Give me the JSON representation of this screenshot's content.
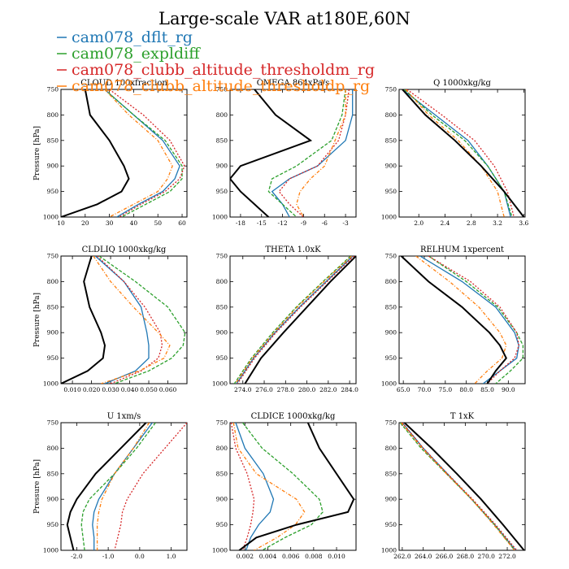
{
  "figure": {
    "title": "Large-scale VAR at180E,60N"
  },
  "legend": [
    {
      "label": "cam078_dflt_rg",
      "color": "#1f77b4"
    },
    {
      "label": "cam078_expldiff",
      "color": "#2ca02c"
    },
    {
      "label": "cam078_clubb_altitude_thresholdm_rg",
      "color": "#d62728"
    },
    {
      "label": "cam078_clubb_altitude_thresholdp_rg",
      "color": "#ff7f0e"
    }
  ],
  "styles": {
    "ref_color": "#000000",
    "ref_label": ""
  },
  "chart_data": [
    {
      "type": "line",
      "title": "CLOUD  100xfraction",
      "ylabel": "Pressure [hPa]",
      "y": [
        750,
        800,
        850,
        900,
        925,
        950,
        975,
        1000
      ],
      "ylim": [
        1000,
        750
      ],
      "xlim": [
        10,
        62
      ],
      "xticks": [
        10,
        20,
        30,
        40,
        50,
        60
      ],
      "xtick_labels": [
        "10",
        "20",
        "30",
        "40",
        "50",
        "60"
      ],
      "ref": [
        20,
        22,
        30,
        36,
        38,
        35,
        25,
        10
      ],
      "series": [
        {
          "values": [
            28,
            40,
            52,
            59,
            57,
            52,
            42,
            33
          ],
          "dash": ""
        },
        {
          "values": [
            28,
            40,
            53,
            60,
            60,
            55,
            45,
            35
          ],
          "dash": "4,2"
        },
        {
          "values": [
            30,
            44,
            55,
            61,
            59,
            53,
            43,
            34
          ],
          "dash": "2,2"
        },
        {
          "values": [
            28,
            38,
            50,
            56,
            54,
            50,
            40,
            30
          ],
          "dash": "4,2,1,2"
        }
      ]
    },
    {
      "type": "line",
      "title": "OMEGA  864xPa/s",
      "ylabel": "",
      "y": [
        750,
        800,
        850,
        900,
        925,
        950,
        975,
        1000
      ],
      "ylim": [
        1000,
        750
      ],
      "xlim": [
        -19.5,
        -1.5
      ],
      "xticks": [
        -18,
        -15,
        -12,
        -9,
        -6,
        -3
      ],
      "xtick_labels": [
        "-18",
        "-15",
        "-12",
        "-9",
        "-6",
        "-3"
      ],
      "ref": [
        -16,
        -13,
        -8,
        -18,
        -19.5,
        -18,
        -16,
        -14
      ],
      "series": [
        {
          "values": [
            -2,
            -2,
            -3,
            -7,
            -11,
            -13.5,
            -12,
            -11
          ],
          "dash": ""
        },
        {
          "values": [
            -3,
            -3.5,
            -5,
            -10,
            -13.5,
            -14,
            -12,
            -10
          ],
          "dash": "4,2"
        },
        {
          "values": [
            -2.5,
            -3,
            -4,
            -7,
            -11,
            -12.5,
            -11,
            -9
          ],
          "dash": "2,2"
        },
        {
          "values": [
            -3,
            -3,
            -4.5,
            -6,
            -8,
            -9.5,
            -10,
            -9
          ],
          "dash": "4,2,1,2"
        }
      ]
    },
    {
      "type": "line",
      "title": "Q  1000xkg/kg",
      "ylabel": "",
      "y": [
        750,
        800,
        850,
        900,
        950,
        1000
      ],
      "ylim": [
        1000,
        750
      ],
      "xlim": [
        1.7,
        3.62
      ],
      "xticks": [
        2.0,
        2.4,
        2.8,
        3.2,
        3.6
      ],
      "xtick_labels": [
        "2.0",
        "2.4",
        "2.8",
        "3.2",
        "3.6"
      ],
      "ref": [
        1.75,
        2.1,
        2.55,
        2.95,
        3.3,
        3.6
      ],
      "series": [
        {
          "values": [
            1.75,
            2.25,
            2.75,
            3.05,
            3.3,
            3.4
          ],
          "dash": ""
        },
        {
          "values": [
            1.78,
            2.2,
            2.7,
            3.05,
            3.3,
            3.42
          ],
          "dash": "4,2"
        },
        {
          "values": [
            1.82,
            2.35,
            2.85,
            3.15,
            3.35,
            3.45
          ],
          "dash": "2,2"
        },
        {
          "values": [
            1.8,
            2.15,
            2.6,
            2.95,
            3.2,
            3.3
          ],
          "dash": "4,2,1,2"
        }
      ]
    },
    {
      "type": "line",
      "title": "CLDLIQ  1000xkg/kg",
      "ylabel": "Pressure [hPa]",
      "y": [
        750,
        800,
        850,
        900,
        925,
        950,
        975,
        1000
      ],
      "ylim": [
        1000,
        750
      ],
      "xlim": [
        0.004,
        0.07
      ],
      "xticks": [
        0.01,
        0.02,
        0.03,
        0.04,
        0.05,
        0.06
      ],
      "xtick_labels": [
        "0.010",
        "0.020",
        "0.030",
        "0.040",
        "0.050",
        "0.060"
      ],
      "ref": [
        0.02,
        0.016,
        0.019,
        0.025,
        0.027,
        0.026,
        0.018,
        0.004
      ],
      "series": [
        {
          "values": [
            0.022,
            0.037,
            0.046,
            0.049,
            0.05,
            0.05,
            0.043,
            0.027
          ],
          "dash": ""
        },
        {
          "values": [
            0.024,
            0.043,
            0.06,
            0.069,
            0.068,
            0.062,
            0.05,
            0.032
          ],
          "dash": "4,2"
        },
        {
          "values": [
            0.023,
            0.037,
            0.048,
            0.056,
            0.057,
            0.055,
            0.046,
            0.03
          ],
          "dash": "2,2"
        },
        {
          "values": [
            0.021,
            0.03,
            0.042,
            0.055,
            0.061,
            0.058,
            0.045,
            0.025
          ],
          "dash": "4,2,1,2"
        }
      ]
    },
    {
      "type": "line",
      "title": "THETA  1.0xK",
      "ylabel": "",
      "y": [
        750,
        800,
        850,
        900,
        950,
        1000
      ],
      "ylim": [
        1000,
        750
      ],
      "xlim": [
        272.8,
        284.6
      ],
      "xticks": [
        274,
        276,
        278,
        280,
        282,
        284
      ],
      "xtick_labels": [
        "274.0",
        "276.0",
        "278.0",
        "280.0",
        "282.0",
        "284.0"
      ],
      "ref": [
        284.6,
        282.2,
        280,
        277.8,
        275.7,
        274.2
      ],
      "series": [
        {
          "values": [
            284.3,
            281.8,
            279.3,
            277,
            275,
            273.4
          ],
          "dash": ""
        },
        {
          "values": [
            284.1,
            281.5,
            279,
            276.8,
            274.8,
            273.2
          ],
          "dash": "4,2"
        },
        {
          "values": [
            284.4,
            281.9,
            279.4,
            277.1,
            275.1,
            273.5
          ],
          "dash": "2,2"
        },
        {
          "values": [
            284.2,
            281.6,
            279.1,
            276.9,
            274.9,
            273.3
          ],
          "dash": "4,2,1,2"
        }
      ]
    },
    {
      "type": "line",
      "title": "RELHUM  1xpercent",
      "ylabel": "",
      "y": [
        750,
        800,
        850,
        900,
        925,
        950,
        975,
        1000
      ],
      "ylim": [
        1000,
        750
      ],
      "xlim": [
        64,
        94
      ],
      "xticks": [
        65,
        70,
        75,
        80,
        85,
        90
      ],
      "xtick_labels": [
        "65.0",
        "70.0",
        "75.0",
        "80.0",
        "85.0",
        "90.0"
      ],
      "ref": [
        64.5,
        71,
        79,
        85.5,
        88,
        89.5,
        87,
        85
      ],
      "series": [
        {
          "values": [
            69,
            79,
            87,
            91.5,
            92.5,
            92,
            88,
            84
          ],
          "dash": ""
        },
        {
          "values": [
            71,
            80,
            87.5,
            92,
            93.5,
            93.5,
            90.5,
            87
          ],
          "dash": "4,2"
        },
        {
          "values": [
            71,
            81,
            88,
            92,
            92.5,
            91.5,
            88,
            85
          ],
          "dash": "2,2"
        },
        {
          "values": [
            68,
            76,
            83,
            88,
            89.5,
            88.5,
            85,
            82
          ],
          "dash": "4,2,1,2"
        }
      ]
    },
    {
      "type": "line",
      "title": "U  1xm/s",
      "ylabel": "Pressure [hPa]",
      "y": [
        750,
        800,
        850,
        900,
        925,
        950,
        975,
        1000
      ],
      "ylim": [
        1000,
        750
      ],
      "xlim": [
        -2.5,
        1.5
      ],
      "xticks": [
        -2.0,
        -1.0,
        0.0,
        1.0
      ],
      "xtick_labels": [
        "-2.0",
        "-1.0",
        "0.0",
        "1.0"
      ],
      "ref": [
        0.2,
        -0.6,
        -1.4,
        -2.0,
        -2.2,
        -2.3,
        -2.2,
        -2.1
      ],
      "series": [
        {
          "values": [
            0.4,
            -0.2,
            -0.8,
            -1.3,
            -1.45,
            -1.5,
            -1.45,
            -1.45
          ],
          "dash": ""
        },
        {
          "values": [
            0.5,
            -0.1,
            -0.8,
            -1.6,
            -1.8,
            -1.85,
            -1.8,
            -1.75
          ],
          "dash": "4,2"
        },
        {
          "values": [
            1.5,
            0.8,
            0.1,
            -0.4,
            -0.55,
            -0.6,
            -0.7,
            -0.8
          ],
          "dash": "2,2"
        },
        {
          "values": [
            0.3,
            -0.2,
            -0.8,
            -1.2,
            -1.3,
            -1.35,
            -1.35,
            -1.35
          ],
          "dash": "4,2,1,2"
        }
      ]
    },
    {
      "type": "line",
      "title": "CLDICE  1000xkg/kg",
      "ylabel": "",
      "y": [
        750,
        800,
        850,
        900,
        925,
        950,
        975,
        1000
      ],
      "ylim": [
        1000,
        750
      ],
      "xlim": [
        0.0007,
        0.0117
      ],
      "xticks": [
        0.002,
        0.004,
        0.006,
        0.008,
        0.01
      ],
      "xtick_labels": [
        "0.002",
        "0.004",
        "0.006",
        "0.008",
        "0.010"
      ],
      "ref": [
        0.0075,
        0.0085,
        0.01,
        0.0115,
        0.011,
        0.0065,
        0.003,
        0.0015
      ],
      "series": [
        {
          "values": [
            0.0012,
            0.002,
            0.0036,
            0.0045,
            0.0042,
            0.0032,
            0.0025,
            0.0021
          ],
          "dash": ""
        },
        {
          "values": [
            0.0018,
            0.0035,
            0.0062,
            0.0085,
            0.0088,
            0.0078,
            0.0055,
            0.0035
          ],
          "dash": "4,2"
        },
        {
          "values": [
            0.0008,
            0.0012,
            0.0022,
            0.0028,
            0.0027,
            0.0025,
            0.0022,
            0.0018
          ],
          "dash": "2,2"
        },
        {
          "values": [
            0.001,
            0.0014,
            0.003,
            0.0065,
            0.0072,
            0.0064,
            0.0048,
            0.0028
          ],
          "dash": "4,2,1,2"
        }
      ]
    },
    {
      "type": "line",
      "title": "T  1xK",
      "ylabel": "",
      "y": [
        750,
        800,
        850,
        900,
        950,
        1000
      ],
      "ylim": [
        1000,
        750
      ],
      "xlim": [
        261.7,
        273.7
      ],
      "xticks": [
        262,
        264,
        266,
        268,
        270,
        272
      ],
      "xtick_labels": [
        "262.0",
        "264.0",
        "266.0",
        "268.0",
        "270.0",
        "272.0"
      ],
      "ref": [
        262.2,
        264.8,
        267.2,
        269.5,
        271.6,
        273.6
      ],
      "series": [
        {
          "values": [
            262.0,
            264.0,
            266.3,
            268.6,
            270.8,
            272.8
          ],
          "dash": ""
        },
        {
          "values": [
            261.8,
            263.8,
            266.2,
            268.6,
            270.8,
            272.7
          ],
          "dash": "4,2"
        },
        {
          "values": [
            262.0,
            264.0,
            266.3,
            268.7,
            270.9,
            272.9
          ],
          "dash": "2,2"
        },
        {
          "values": [
            261.9,
            263.9,
            266.2,
            268.6,
            270.7,
            272.7
          ],
          "dash": "4,2,1,2"
        }
      ]
    }
  ]
}
